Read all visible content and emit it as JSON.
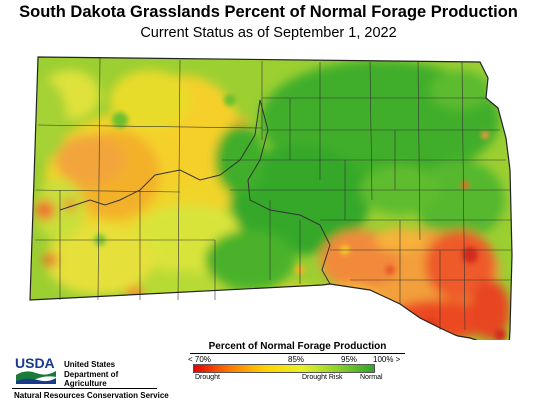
{
  "title": "South Dakota Grasslands Percent of Normal Forage Production",
  "subtitle": "Current Status as of September 1, 2022",
  "legend": {
    "title": "Percent of Normal Forage Production",
    "ticks": [
      "< 70%",
      "85%",
      "95%",
      "100% >"
    ],
    "categories": [
      "Drought",
      "Drought Risk",
      "Normal"
    ],
    "colors": [
      "#e60000",
      "#ff7b00",
      "#ffd400",
      "#e8ef2a",
      "#8bd12a",
      "#2fa52a"
    ]
  },
  "agency": {
    "logo_text": "USDA",
    "name_lines": [
      "United States",
      "Department of",
      "Agriculture"
    ],
    "service": "Natural Resources Conservation Service"
  }
}
